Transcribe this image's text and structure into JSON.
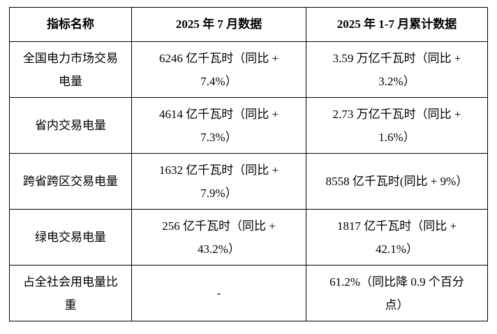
{
  "table": {
    "headers": [
      "指标名称",
      "2025 年 7 月数据",
      "2025 年 1-7 月累计数据"
    ],
    "rows": [
      [
        "全国电力市场交易\n电量",
        "6246 亿千瓦时（同比 +\n7.4%）",
        "3.59 万亿千瓦时（同比 +\n3.2%）"
      ],
      [
        "省内交易电量",
        "4614 亿千瓦时（同比 +\n7.3%）",
        "2.73 万亿千瓦时（同比 +\n1.6%）"
      ],
      [
        "跨省跨区交易电量",
        "1632 亿千瓦时（同比 +\n7.9%）",
        "8558 亿千瓦时(同比 + 9%）"
      ],
      [
        "绿电交易电量",
        "256 亿千瓦时（同比 +\n43.2%）",
        "1817 亿千瓦时（同比 +\n42.1%）"
      ],
      [
        "占全社会用电量比\n重",
        "-",
        "61.2%（同比降 0.9 个百分\n点）"
      ]
    ],
    "colors": {
      "border": "#000000",
      "text": "#000000",
      "background": "#ffffff"
    }
  }
}
